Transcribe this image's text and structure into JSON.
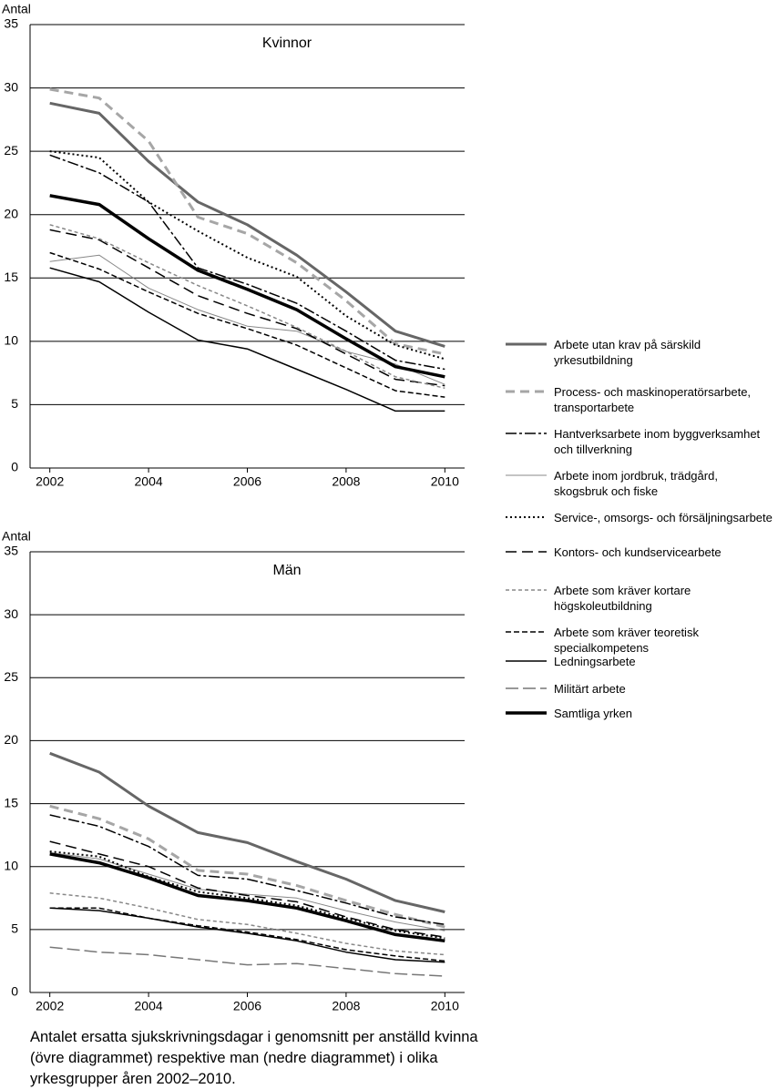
{
  "chart_data": [
    {
      "type": "line",
      "title": "Kvinnor",
      "ylabel": "Antal",
      "x": [
        2002,
        2003,
        2004,
        2005,
        2006,
        2007,
        2008,
        2009,
        2010
      ],
      "xlim": [
        2001.6,
        2010.4
      ],
      "xticks": [
        2002,
        2004,
        2006,
        2008,
        2010
      ],
      "ylim": [
        0,
        35
      ],
      "yticks": [
        0,
        5,
        10,
        15,
        20,
        25,
        30,
        35
      ],
      "grid": true,
      "series": [
        {
          "values": [
            28.8,
            28.0,
            24.2,
            21.0,
            19.2,
            16.8,
            13.9,
            10.8,
            9.6
          ]
        },
        {
          "values": [
            29.9,
            29.2,
            25.8,
            19.8,
            18.5,
            16.2,
            13.2,
            9.8,
            9.0
          ]
        },
        {
          "values": [
            24.7,
            23.3,
            21.0,
            15.8,
            14.5,
            13.0,
            10.8,
            8.5,
            7.8
          ]
        },
        {
          "values": [
            16.3,
            16.8,
            14.2,
            12.5,
            11.2,
            10.8,
            9.2,
            8.2,
            6.6
          ]
        },
        {
          "values": [
            25.0,
            24.5,
            21.0,
            18.7,
            16.6,
            15.1,
            12.0,
            9.7,
            8.6
          ]
        },
        {
          "values": [
            18.8,
            18.0,
            15.8,
            13.6,
            12.2,
            11.0,
            9.0,
            7.0,
            6.5
          ]
        },
        {
          "values": [
            19.2,
            18.1,
            16.2,
            14.4,
            12.8,
            11.1,
            9.2,
            7.2,
            6.3
          ]
        },
        {
          "values": [
            17.0,
            15.7,
            13.9,
            12.2,
            11.0,
            9.7,
            7.9,
            6.1,
            5.6
          ]
        },
        {
          "values": [
            15.8,
            14.7,
            12.3,
            10.1,
            9.4,
            7.8,
            6.2,
            4.5,
            4.5
          ]
        },
        {
          "values": [
            null,
            null,
            null,
            null,
            null,
            null,
            null,
            null,
            null
          ]
        },
        {
          "values": [
            21.5,
            20.8,
            18.1,
            15.6,
            14.1,
            12.5,
            10.2,
            8.0,
            7.2
          ]
        }
      ]
    },
    {
      "type": "line",
      "title": "Män",
      "ylabel": "Antal",
      "x": [
        2002,
        2003,
        2004,
        2005,
        2006,
        2007,
        2008,
        2009,
        2010
      ],
      "xlim": [
        2001.6,
        2010.4
      ],
      "xticks": [
        2002,
        2004,
        2006,
        2008,
        2010
      ],
      "ylim": [
        0,
        35
      ],
      "yticks": [
        0,
        5,
        10,
        15,
        20,
        25,
        30,
        35
      ],
      "grid": true,
      "series": [
        {
          "values": [
            19.0,
            17.5,
            14.8,
            12.7,
            11.9,
            10.4,
            9.0,
            7.3,
            6.4
          ]
        },
        {
          "values": [
            14.8,
            13.8,
            12.2,
            9.7,
            9.4,
            8.5,
            7.3,
            6.2,
            5.2
          ]
        },
        {
          "values": [
            14.1,
            13.2,
            11.6,
            9.3,
            9.0,
            8.1,
            7.1,
            6.0,
            5.4
          ]
        },
        {
          "values": [
            11.1,
            10.6,
            9.4,
            8.2,
            7.8,
            7.5,
            6.5,
            5.6,
            4.9
          ]
        },
        {
          "values": [
            11.2,
            10.8,
            9.2,
            8.0,
            7.5,
            6.9,
            5.9,
            4.9,
            4.3
          ]
        },
        {
          "values": [
            12.0,
            11.0,
            10.0,
            8.3,
            7.7,
            7.2,
            6.0,
            5.0,
            4.4
          ]
        },
        {
          "values": [
            7.9,
            7.5,
            6.7,
            5.8,
            5.4,
            4.7,
            3.9,
            3.3,
            3.0
          ]
        },
        {
          "values": [
            6.7,
            6.7,
            5.9,
            5.3,
            4.8,
            4.2,
            3.4,
            2.9,
            2.5
          ]
        },
        {
          "values": [
            6.7,
            6.5,
            5.9,
            5.2,
            4.7,
            4.1,
            3.2,
            2.6,
            2.4
          ]
        },
        {
          "values": [
            3.6,
            3.2,
            3.0,
            2.6,
            2.2,
            2.3,
            1.9,
            1.5,
            1.3
          ]
        },
        {
          "values": [
            11.0,
            10.3,
            9.1,
            7.7,
            7.3,
            6.7,
            5.7,
            4.6,
            4.1
          ]
        }
      ]
    }
  ],
  "legend": [
    {
      "name": "Arbete utan krav på särskild yrkesutbildning",
      "color": "#666666",
      "line_width": 3,
      "dash": "none"
    },
    {
      "name": "Process- och maskinoperatörsarbete, transportarbete",
      "color": "#a6a6a6",
      "line_width": 3,
      "dash": "10,6"
    },
    {
      "name": "Hantverksarbete inom byggverksamhet och tillverkning",
      "color": "#000000",
      "line_width": 1.5,
      "dash": "12,3,3,3"
    },
    {
      "name": "Arbete inom jordbruk, trädgård, skogsbruk och fiske",
      "color": "#888888",
      "line_width": 1,
      "dash": "none"
    },
    {
      "name": "Service-, omsorgs- och försäljningsarbete",
      "color": "#000000",
      "line_width": 2,
      "dash": "2,3"
    },
    {
      "name": "Kontors- och kundservicearbete",
      "color": "#000000",
      "line_width": 1.5,
      "dash": "12,6"
    },
    {
      "name": "Arbete som kräver kortare högskoleutbildning",
      "color": "#888888",
      "line_width": 1.5,
      "dash": "4,3"
    },
    {
      "name": "Arbete som kräver teoretisk specialkompetens",
      "color": "#000000",
      "line_width": 1.5,
      "dash": "6,3"
    },
    {
      "name": "Ledningsarbete",
      "color": "#000000",
      "line_width": 1.5,
      "dash": "none"
    },
    {
      "name": "Militärt arbete",
      "color": "#777777",
      "line_width": 1.5,
      "dash": "14,5"
    },
    {
      "name": "Samtliga yrken",
      "color": "#000000",
      "line_width": 3.5,
      "dash": "none"
    }
  ],
  "caption": "Antalet ersatta sjukskrivningsdagar i genomsnitt per anställd kvinna (övre diagrammet) respektive man (nedre diagrammet) i olika yrkesgrupper åren 2002–2010."
}
